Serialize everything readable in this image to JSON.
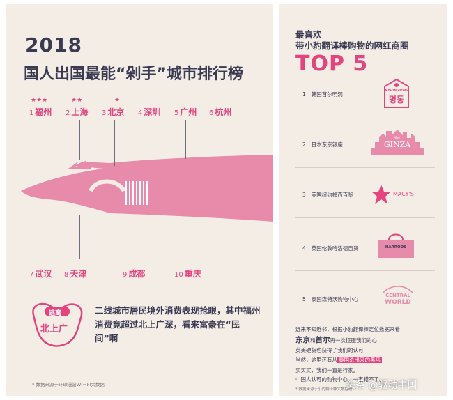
{
  "left": {
    "year": "2018",
    "title": "国人出国最能“剁手”城市排行榜",
    "cities_top": [
      {
        "rank": "1",
        "name": "福州",
        "stars": "★★★"
      },
      {
        "rank": "2",
        "name": "上海",
        "stars": "★★"
      },
      {
        "rank": "3",
        "name": "北京",
        "stars": "★"
      },
      {
        "rank": "4",
        "name": "深圳",
        "stars": ""
      },
      {
        "rank": "5",
        "name": "广州",
        "stars": ""
      },
      {
        "rank": "6",
        "name": "杭州",
        "stars": ""
      }
    ],
    "cities_bottom": [
      {
        "rank": "7",
        "name": "武汉"
      },
      {
        "rank": "8",
        "name": "天津"
      },
      {
        "rank": "9",
        "name": "成都"
      },
      {
        "rank": "10",
        "name": "重庆"
      }
    ],
    "badge_top": "逃离",
    "badge_main": "北上广",
    "description": "二线城市居民境外消费表现抢眼，其中福州消费竟超过北上广深，看来富豪在“民间”啊",
    "source": "* 数据来源于环球漫游WI－FI大数据"
  },
  "right": {
    "subtitle_line1": "最喜欢",
    "subtitle_line2": "带小豹翻译棒购物的网红商圈",
    "top_label": "TOP 5",
    "malls": [
      {
        "rank": "1",
        "name": "韩国首尔明洞",
        "logo_text": "명동",
        "logo_sub": "MYEONGDONG"
      },
      {
        "rank": "2",
        "name": "日本东京银座",
        "logo_text": "GINZA",
        "logo_sub": "银座"
      },
      {
        "rank": "3",
        "name": "美国纽约梅西百货",
        "logo_text": "MACY'S",
        "logo_sub": ""
      },
      {
        "rank": "4",
        "name": "英国伦敦哈洛德百货",
        "logo_text": "HARRODS",
        "logo_sub": ""
      },
      {
        "rank": "5",
        "name": "泰国森特沃购物中心",
        "logo_text": "CENTRAL",
        "logo_sub": "WORLD"
      }
    ],
    "text_line1": "远来不知近邻，根据小豹翻译棒定位数据来看",
    "text_line2_a": "东京",
    "text_line2_b": "和",
    "text_line2_c": "首尔",
    "text_line2_d": "再一次征服我们的心",
    "text_line3": "英美硬货也获得了我们的认可",
    "text_line4_a": "当然，这里还有从",
    "text_line4_hl": "泰国杀出来的黑马",
    "text_line5": "买买买，我们一直是行家。",
    "text_line6": "中国人认可的购物中心，一定错不了。",
    "source": "* 数据来源于小豹翻译棒大数据统计"
  },
  "watermark": "头条 @驱动中国",
  "colors": {
    "accent": "#e4457f",
    "background": "#f3ede6",
    "text": "#3a3a52"
  }
}
